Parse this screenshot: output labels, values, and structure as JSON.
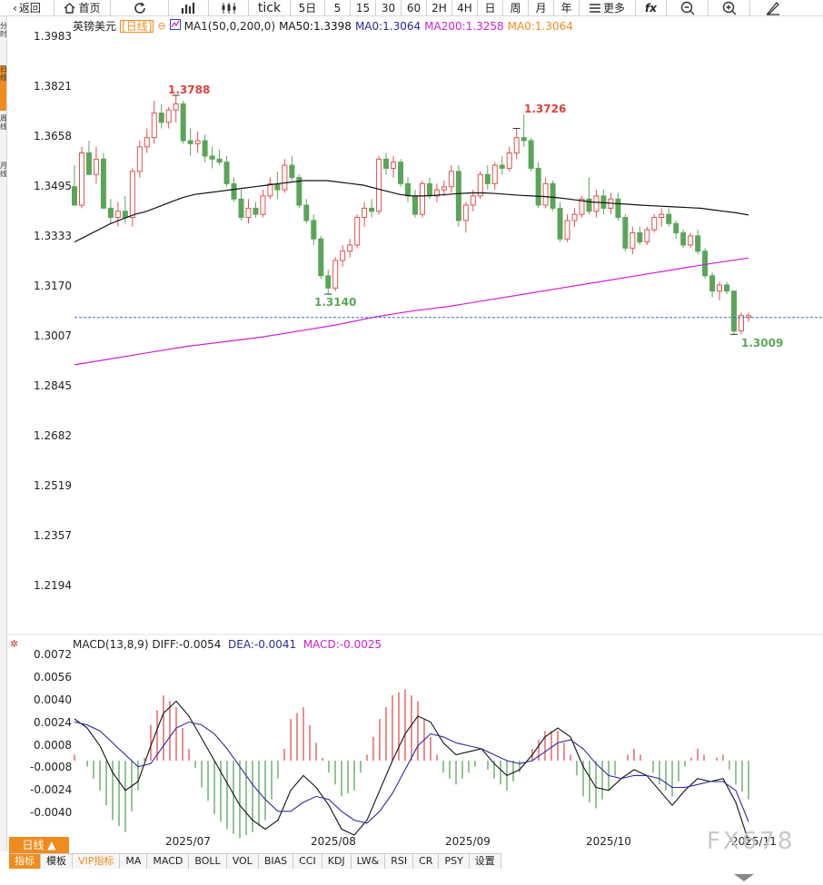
{
  "toolbar": {
    "back": "返回",
    "home": "首页",
    "tick": "tick",
    "day5": "5日",
    "m5": "5",
    "m15": "15",
    "m30": "30",
    "m60": "60",
    "h2": "2H",
    "h4": "4H",
    "day": "日",
    "week": "周",
    "month": "月",
    "year": "年",
    "more": "更多",
    "fx": "fx"
  },
  "left_strip": [
    "分时",
    "日线",
    "周线",
    "月线"
  ],
  "legend": {
    "symbol": "英镑美元",
    "period": "[日线]",
    "ma_name": "MA1(50,0,200,0)",
    "ma50": "MA50:1.3398",
    "ma0_a": "MA0:1.3064",
    "ma200": "MA200:1.3258",
    "ma0_b": "MA0:1.3064"
  },
  "macd_legend": {
    "name": "MACD(13,8,9)",
    "diff": "DIFF:-0.0054",
    "dea": "DEA:-0.0041",
    "macd": "MACD:-0.0025"
  },
  "y_axis": [
    "1.3983",
    "1.3821",
    "1.3658",
    "1.3495",
    "1.3333",
    "1.3170",
    "1.3007",
    "1.2845",
    "1.2682",
    "1.2519",
    "1.2357",
    "1.2194"
  ],
  "macd_axis": [
    "0.0072",
    "0.0056",
    "0.0040",
    "0.0024",
    "0.0008",
    "-0.0008",
    "-0.0024",
    "-0.0040"
  ],
  "x_axis": [
    "2025/07",
    "2025/08",
    "2025/09",
    "2025/10",
    "2025/11"
  ],
  "annotations": {
    "high1": "1.3788",
    "low1": "1.3140",
    "high2": "1.3726",
    "low2": "1.3009"
  },
  "bottom": {
    "period_button": "日线 ▲",
    "tabs": [
      "指标",
      "模板",
      "VIP指标",
      "MA",
      "MACD",
      "BOLL",
      "VOL",
      "BIAS",
      "CCI",
      "KDJ",
      "LW&",
      "RSI",
      "CR",
      "PSY",
      "设置"
    ]
  },
  "watermark": "FX678",
  "colors": {
    "up": "#e05050",
    "down": "#5aa55a",
    "ma50": "#111111",
    "ma200": "#d020d0",
    "dea": "#2a2a9a",
    "current_line": "#3a70c0",
    "accent": "#f08c1e"
  },
  "chart_data": {
    "type": "candlestick",
    "ylim": [
      1.2194,
      1.3983
    ],
    "current_price": 1.3064,
    "candles": [
      [
        1.349,
        1.356,
        1.344,
        1.343
      ],
      [
        1.343,
        1.362,
        1.342,
        1.36
      ],
      [
        1.36,
        1.364,
        1.354,
        1.353
      ],
      [
        1.353,
        1.362,
        1.35,
        1.358
      ],
      [
        1.358,
        1.36,
        1.342,
        1.342
      ],
      [
        1.342,
        1.345,
        1.337,
        1.339
      ],
      [
        1.339,
        1.344,
        1.336,
        1.341
      ],
      [
        1.341,
        1.346,
        1.337,
        1.339
      ],
      [
        1.339,
        1.355,
        1.336,
        1.354
      ],
      [
        1.354,
        1.364,
        1.352,
        1.362
      ],
      [
        1.362,
        1.368,
        1.36,
        1.365
      ],
      [
        1.365,
        1.377,
        1.363,
        1.373
      ],
      [
        1.373,
        1.376,
        1.368,
        1.37
      ],
      [
        1.37,
        1.375,
        1.368,
        1.374
      ],
      [
        1.374,
        1.3788,
        1.37,
        1.376
      ],
      [
        1.376,
        1.377,
        1.363,
        1.364
      ],
      [
        1.364,
        1.368,
        1.359,
        1.363
      ],
      [
        1.363,
        1.367,
        1.36,
        1.364
      ],
      [
        1.364,
        1.366,
        1.357,
        1.359
      ],
      [
        1.359,
        1.362,
        1.355,
        1.358
      ],
      [
        1.358,
        1.361,
        1.356,
        1.357
      ],
      [
        1.357,
        1.359,
        1.349,
        1.35
      ],
      [
        1.35,
        1.352,
        1.344,
        1.345
      ],
      [
        1.345,
        1.348,
        1.338,
        1.339
      ],
      [
        1.339,
        1.345,
        1.337,
        1.342
      ],
      [
        1.342,
        1.344,
        1.339,
        1.34
      ],
      [
        1.34,
        1.348,
        1.339,
        1.346
      ],
      [
        1.346,
        1.352,
        1.345,
        1.35
      ],
      [
        1.35,
        1.354,
        1.345,
        1.348
      ],
      [
        1.348,
        1.358,
        1.347,
        1.356
      ],
      [
        1.356,
        1.359,
        1.351,
        1.352
      ],
      [
        1.352,
        1.353,
        1.342,
        1.343
      ],
      [
        1.343,
        1.345,
        1.337,
        1.338
      ],
      [
        1.338,
        1.34,
        1.33,
        1.332
      ],
      [
        1.332,
        1.333,
        1.319,
        1.32
      ],
      [
        1.32,
        1.322,
        1.314,
        1.316
      ],
      [
        1.316,
        1.326,
        1.315,
        1.325
      ],
      [
        1.325,
        1.33,
        1.323,
        1.328
      ],
      [
        1.328,
        1.332,
        1.326,
        1.33
      ],
      [
        1.33,
        1.34,
        1.329,
        1.339
      ],
      [
        1.339,
        1.344,
        1.336,
        1.342
      ],
      [
        1.342,
        1.345,
        1.339,
        1.341
      ],
      [
        1.341,
        1.359,
        1.34,
        1.358
      ],
      [
        1.358,
        1.36,
        1.353,
        1.355
      ],
      [
        1.355,
        1.359,
        1.352,
        1.357
      ],
      [
        1.357,
        1.358,
        1.349,
        1.35
      ],
      [
        1.35,
        1.352,
        1.344,
        1.346
      ],
      [
        1.346,
        1.348,
        1.339,
        1.34
      ],
      [
        1.34,
        1.351,
        1.339,
        1.35
      ],
      [
        1.35,
        1.352,
        1.345,
        1.346
      ],
      [
        1.346,
        1.35,
        1.344,
        1.348
      ],
      [
        1.348,
        1.351,
        1.346,
        1.349
      ],
      [
        1.349,
        1.356,
        1.347,
        1.354
      ],
      [
        1.354,
        1.356,
        1.336,
        1.338
      ],
      [
        1.338,
        1.344,
        1.334,
        1.343
      ],
      [
        1.343,
        1.348,
        1.341,
        1.346
      ],
      [
        1.346,
        1.354,
        1.345,
        1.353
      ],
      [
        1.353,
        1.356,
        1.348,
        1.35
      ],
      [
        1.35,
        1.357,
        1.348,
        1.356
      ],
      [
        1.356,
        1.359,
        1.353,
        1.355
      ],
      [
        1.355,
        1.362,
        1.354,
        1.36
      ],
      [
        1.36,
        1.368,
        1.358,
        1.365
      ],
      [
        1.365,
        1.3726,
        1.362,
        1.364
      ],
      [
        1.364,
        1.365,
        1.354,
        1.355
      ],
      [
        1.355,
        1.357,
        1.342,
        1.343
      ],
      [
        1.343,
        1.352,
        1.342,
        1.35
      ],
      [
        1.35,
        1.351,
        1.341,
        1.342
      ],
      [
        1.342,
        1.344,
        1.331,
        1.332
      ],
      [
        1.332,
        1.34,
        1.331,
        1.338
      ],
      [
        1.338,
        1.342,
        1.336,
        1.34
      ],
      [
        1.34,
        1.346,
        1.339,
        1.345
      ],
      [
        1.345,
        1.352,
        1.34,
        1.341
      ],
      [
        1.341,
        1.348,
        1.339,
        1.346
      ],
      [
        1.346,
        1.348,
        1.34,
        1.342
      ],
      [
        1.342,
        1.347,
        1.34,
        1.345
      ],
      [
        1.345,
        1.347,
        1.338,
        1.339
      ],
      [
        1.339,
        1.34,
        1.328,
        1.329
      ],
      [
        1.329,
        1.336,
        1.327,
        1.334
      ],
      [
        1.334,
        1.336,
        1.33,
        1.331
      ],
      [
        1.331,
        1.336,
        1.33,
        1.335
      ],
      [
        1.335,
        1.34,
        1.334,
        1.339
      ],
      [
        1.339,
        1.342,
        1.336,
        1.34
      ],
      [
        1.34,
        1.342,
        1.336,
        1.337
      ],
      [
        1.337,
        1.338,
        1.332,
        1.334
      ],
      [
        1.334,
        1.335,
        1.329,
        1.33
      ],
      [
        1.33,
        1.334,
        1.329,
        1.333
      ],
      [
        1.333,
        1.335,
        1.327,
        1.328
      ],
      [
        1.328,
        1.329,
        1.319,
        1.32
      ],
      [
        1.32,
        1.321,
        1.313,
        1.315
      ],
      [
        1.315,
        1.318,
        1.312,
        1.317
      ],
      [
        1.317,
        1.318,
        1.314,
        1.315
      ],
      [
        1.315,
        1.315,
        1.3009,
        1.302
      ],
      [
        1.302,
        1.308,
        1.301,
        1.307
      ],
      [
        1.3064,
        1.308,
        1.305,
        1.307
      ]
    ],
    "ma50": [
      1.331,
      1.333,
      1.335,
      1.337,
      1.3385,
      1.34,
      1.341,
      1.3425,
      1.344,
      1.3455,
      1.3465,
      1.347,
      1.3475,
      1.348,
      1.3485,
      1.349,
      1.3495,
      1.35,
      1.3505,
      1.351,
      1.351,
      1.351,
      1.3505,
      1.35,
      1.3495,
      1.3485,
      1.3475,
      1.3465,
      1.346,
      1.346,
      1.3462,
      1.3465,
      1.3468,
      1.347,
      1.347,
      1.3468,
      1.3465,
      1.3462,
      1.346,
      1.3458,
      1.3455,
      1.345,
      1.3445,
      1.344,
      1.3438,
      1.3435,
      1.3433,
      1.343,
      1.3428,
      1.3426,
      1.3424,
      1.3422,
      1.342,
      1.3415,
      1.341,
      1.3405,
      1.3398
    ],
    "ma200": [
      1.291,
      1.293,
      1.295,
      1.297,
      1.2985,
      1.3,
      1.302,
      1.304,
      1.3065,
      1.3085,
      1.31,
      1.312,
      1.314,
      1.316,
      1.318,
      1.32,
      1.322,
      1.324,
      1.3258
    ],
    "macd": {
      "ylim": [
        -0.005,
        0.0072
      ],
      "diff": [
        0.0028,
        0.0022,
        0.001,
        -0.0008,
        -0.002,
        -0.0014,
        0.001,
        0.0032,
        0.004,
        0.003,
        0.0015,
        0.0,
        -0.0015,
        -0.003,
        -0.004,
        -0.0046,
        -0.004,
        -0.002,
        -0.001,
        -0.0018,
        -0.003,
        -0.0046,
        -0.005,
        -0.004,
        -0.002,
        0.0,
        0.0018,
        0.003,
        0.0026,
        0.0012,
        0.0004,
        0.0006,
        0.0008,
        -0.0002,
        -0.001,
        -0.0006,
        0.0004,
        0.0016,
        0.0022,
        0.0016,
        -0.0004,
        -0.0018,
        -0.002,
        -0.0012,
        -0.0006,
        -0.001,
        -0.002,
        -0.003,
        -0.002,
        -0.0012,
        -0.0014,
        -0.0012,
        -0.0028,
        -0.0054
      ],
      "dea": [
        0.0026,
        0.0024,
        0.002,
        0.0012,
        0.0004,
        -0.0004,
        -0.0002,
        0.001,
        0.0022,
        0.0026,
        0.0024,
        0.0018,
        0.0008,
        -0.0004,
        -0.0016,
        -0.0026,
        -0.0034,
        -0.0034,
        -0.0028,
        -0.0024,
        -0.0026,
        -0.0034,
        -0.004,
        -0.0042,
        -0.0034,
        -0.0022,
        -0.0006,
        0.001,
        0.0018,
        0.0016,
        0.0012,
        0.001,
        0.0008,
        0.0004,
        0.0,
        -0.0002,
        0.0,
        0.0006,
        0.0012,
        0.0014,
        0.0008,
        -0.0002,
        -0.001,
        -0.0012,
        -0.001,
        -0.001,
        -0.0012,
        -0.0018,
        -0.0018,
        -0.0016,
        -0.0014,
        -0.0014,
        -0.002,
        -0.0041
      ]
    }
  }
}
